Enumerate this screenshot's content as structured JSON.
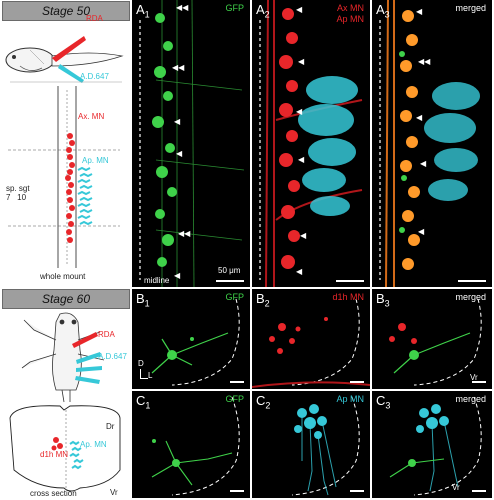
{
  "stage50": {
    "title": "Stage 50",
    "rda": "RDA",
    "a647": "A.D.647",
    "ax_mn": "Ax. MN",
    "ap_mn": "Ap. MN",
    "sp_sgt": "sp. sgt\n7   10",
    "whole_mount": "whole mount"
  },
  "stage60": {
    "title": "Stage 60",
    "rda": "RDA",
    "a647": "A.D.647",
    "dr": "Dr",
    "vr": "Vr",
    "d1h_mn": "d1h MN",
    "ap_mn": "Ap. MN",
    "cross_section": "cross section"
  },
  "panels": {
    "a1": {
      "letter": "A",
      "sub": "1",
      "channel": "GFP"
    },
    "a2": {
      "letter": "A",
      "sub": "2",
      "channel": "Ax MN\nAp MN"
    },
    "a3": {
      "letter": "A",
      "sub": "3",
      "channel": "merged"
    },
    "b1": {
      "letter": "B",
      "sub": "1",
      "channel": "GFP"
    },
    "b2": {
      "letter": "B",
      "sub": "2",
      "channel": "d1h MN"
    },
    "b3": {
      "letter": "B",
      "sub": "3",
      "channel": "merged"
    },
    "c1": {
      "letter": "C",
      "sub": "1",
      "channel": "GFP"
    },
    "c2": {
      "letter": "C",
      "sub": "2",
      "channel": "Ap MN"
    },
    "c3": {
      "letter": "C",
      "sub": "3",
      "channel": "merged"
    }
  },
  "annotations": {
    "scale_bar": "50 μm",
    "midline": "midline",
    "axis_d": "D",
    "axis_l": "L",
    "vr": "Vr"
  },
  "colors": {
    "gfp": "#3fd24a",
    "red": "#e8262a",
    "cyan": "#36c8d8",
    "orange": "#ff9a2a"
  }
}
